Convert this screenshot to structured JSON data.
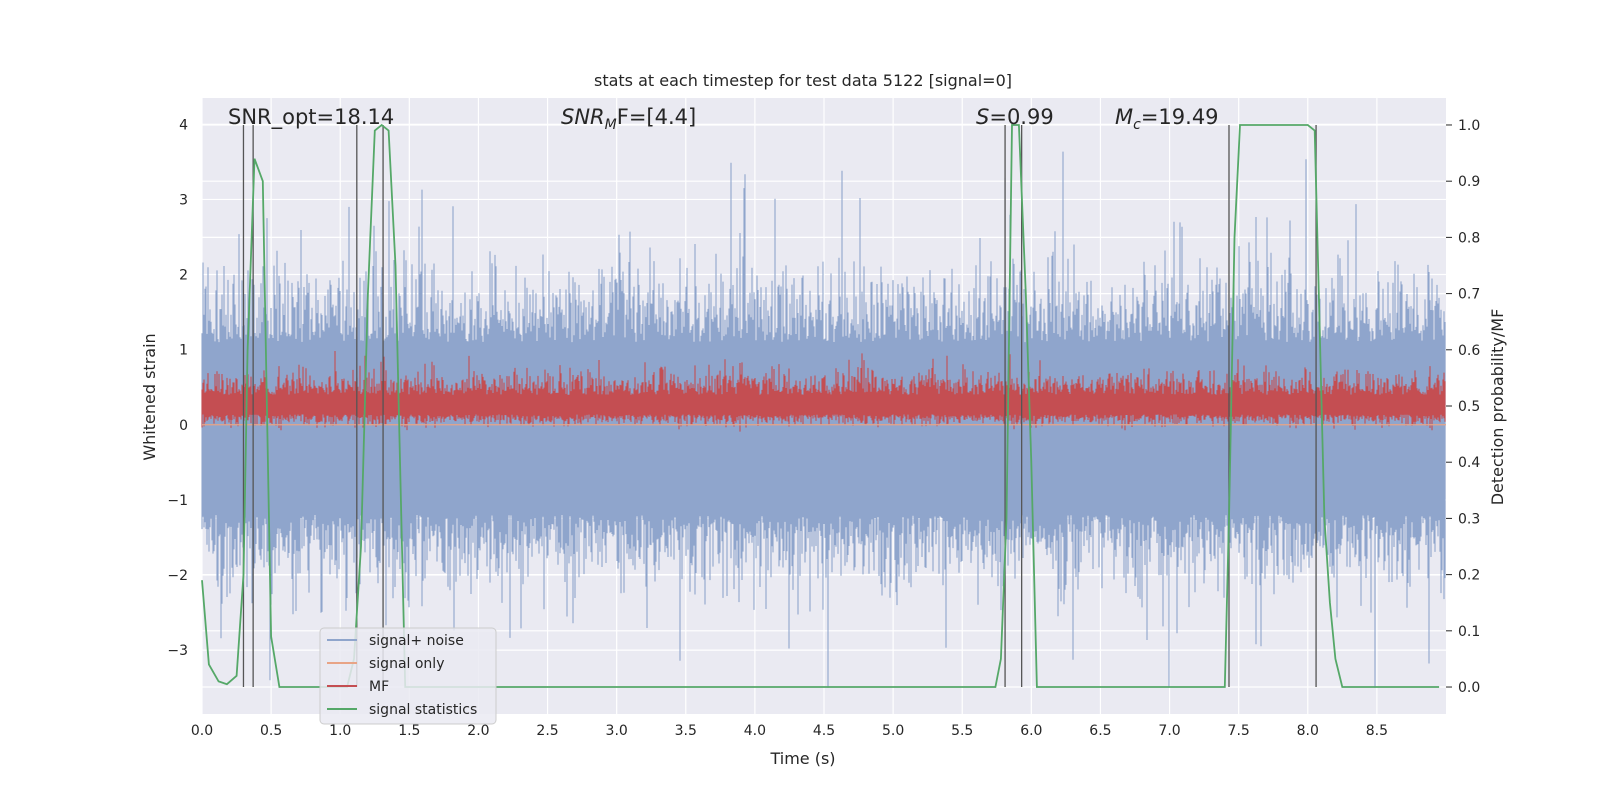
{
  "chart_data": {
    "type": "line",
    "title": "stats at each timestep for test data 5122 [signal=0]",
    "xlabel": "Time (s)",
    "ylabel": "Whitened strain",
    "y2label": "Detection probability/MF",
    "xlim": [
      0,
      9.0
    ],
    "ylim": [
      -3.85,
      4.35
    ],
    "y2lim": [
      -0.048,
      1.048
    ],
    "xticks": [
      "0.0",
      "0.5",
      "1.0",
      "1.5",
      "2.0",
      "2.5",
      "3.0",
      "3.5",
      "4.0",
      "4.5",
      "5.0",
      "5.5",
      "6.0",
      "6.5",
      "7.0",
      "7.5",
      "8.0",
      "8.5"
    ],
    "yticks": [
      "−3",
      "−2",
      "−1",
      "0",
      "1",
      "2",
      "3",
      "4"
    ],
    "y2ticks": [
      "0.0",
      "0.1",
      "0.2",
      "0.3",
      "0.4",
      "0.5",
      "0.6",
      "0.7",
      "0.8",
      "0.9",
      "1.0"
    ],
    "annotations": {
      "snr_opt": "SNR_opt=18.14",
      "snr_mf_main": "SNR",
      "snr_mf_sub": "M",
      "snr_mf_rest": "F=[4.4]",
      "s_main": "S",
      "s_rest": "=0.99",
      "mc_main": "M",
      "mc_sub": "c",
      "mc_rest": "=19.49"
    },
    "legend": {
      "position": "lower-left",
      "entries": [
        {
          "label": "signal+ noise",
          "color": "#8fa5cc"
        },
        {
          "label": "signal only",
          "color": "#e8a486"
        },
        {
          "label": "MF",
          "color": "#c44e52"
        },
        {
          "label": "signal statistics",
          "color": "#55a868"
        }
      ]
    },
    "colors": {
      "noise": "#8fa5cc",
      "signal": "#e8a486",
      "mf": "#c44e52",
      "stat": "#55a868",
      "vline": "#555555",
      "background": "#eaeaf2",
      "grid": "#ffffff"
    },
    "vlines": [
      0.3,
      0.37,
      1.12,
      1.31,
      5.81,
      5.93,
      7.43,
      8.06
    ],
    "series": [
      {
        "name": "signal statistics",
        "axis": "right",
        "x": [
          0.0,
          0.05,
          0.12,
          0.18,
          0.25,
          0.3,
          0.33,
          0.38,
          0.44,
          0.5,
          0.56,
          0.62,
          1.05,
          1.1,
          1.15,
          1.2,
          1.25,
          1.3,
          1.35,
          1.4,
          1.47,
          5.74,
          5.78,
          5.82,
          5.86,
          5.91,
          5.96,
          6.0,
          6.04,
          6.1,
          7.4,
          7.43,
          7.47,
          7.51,
          7.55,
          8.0,
          8.05,
          8.08,
          8.12,
          8.16,
          8.2,
          8.25,
          8.95
        ],
        "y": [
          0.19,
          0.04,
          0.01,
          0.005,
          0.02,
          0.2,
          0.6,
          0.94,
          0.9,
          0.09,
          0.0,
          0.0,
          0.0,
          0.05,
          0.25,
          0.7,
          0.99,
          1.0,
          0.99,
          0.75,
          0.0,
          0.0,
          0.05,
          0.3,
          1.0,
          1.0,
          0.7,
          0.4,
          0.0,
          0.0,
          0.0,
          0.3,
          0.8,
          1.0,
          1.0,
          1.0,
          0.99,
          0.7,
          0.3,
          0.15,
          0.05,
          0.0,
          0.0
        ]
      },
      {
        "name": "MF",
        "axis": "right",
        "baseline": 0.5,
        "description": "dense fluctuating matched-filter output around 0.5"
      },
      {
        "name": "signal+ noise",
        "axis": "left",
        "description": "dense whitened strain noise, roughly within ±2, spikes to ±4"
      },
      {
        "name": "signal only",
        "axis": "left",
        "description": "zero signal (signal=0)"
      }
    ]
  }
}
